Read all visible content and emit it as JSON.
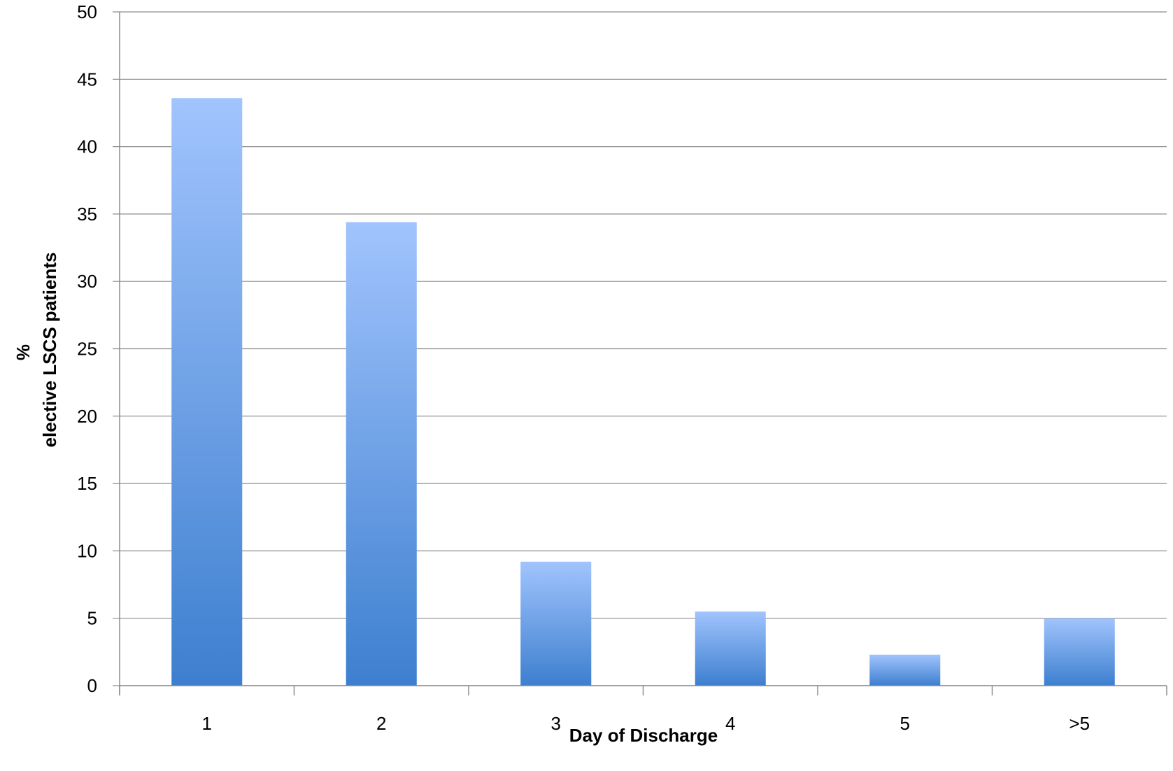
{
  "chart_data": {
    "type": "bar",
    "categories": [
      "1",
      "2",
      "3",
      "4",
      "5",
      ">5"
    ],
    "values": [
      43.6,
      34.4,
      9.2,
      5.5,
      2.3,
      5.0
    ],
    "title": "",
    "xlabel": "Day of Discharge",
    "ylabel_line1": "%",
    "ylabel_line2": "elective LSCS patients",
    "ylim": [
      0,
      50
    ],
    "yticks": [
      "0",
      "5",
      "10",
      "15",
      "20",
      "25",
      "30",
      "35",
      "40",
      "45",
      "50"
    ],
    "grid": true,
    "bar_color_top": "#a1c4fd",
    "bar_color_bottom": "#3d7fcf"
  }
}
